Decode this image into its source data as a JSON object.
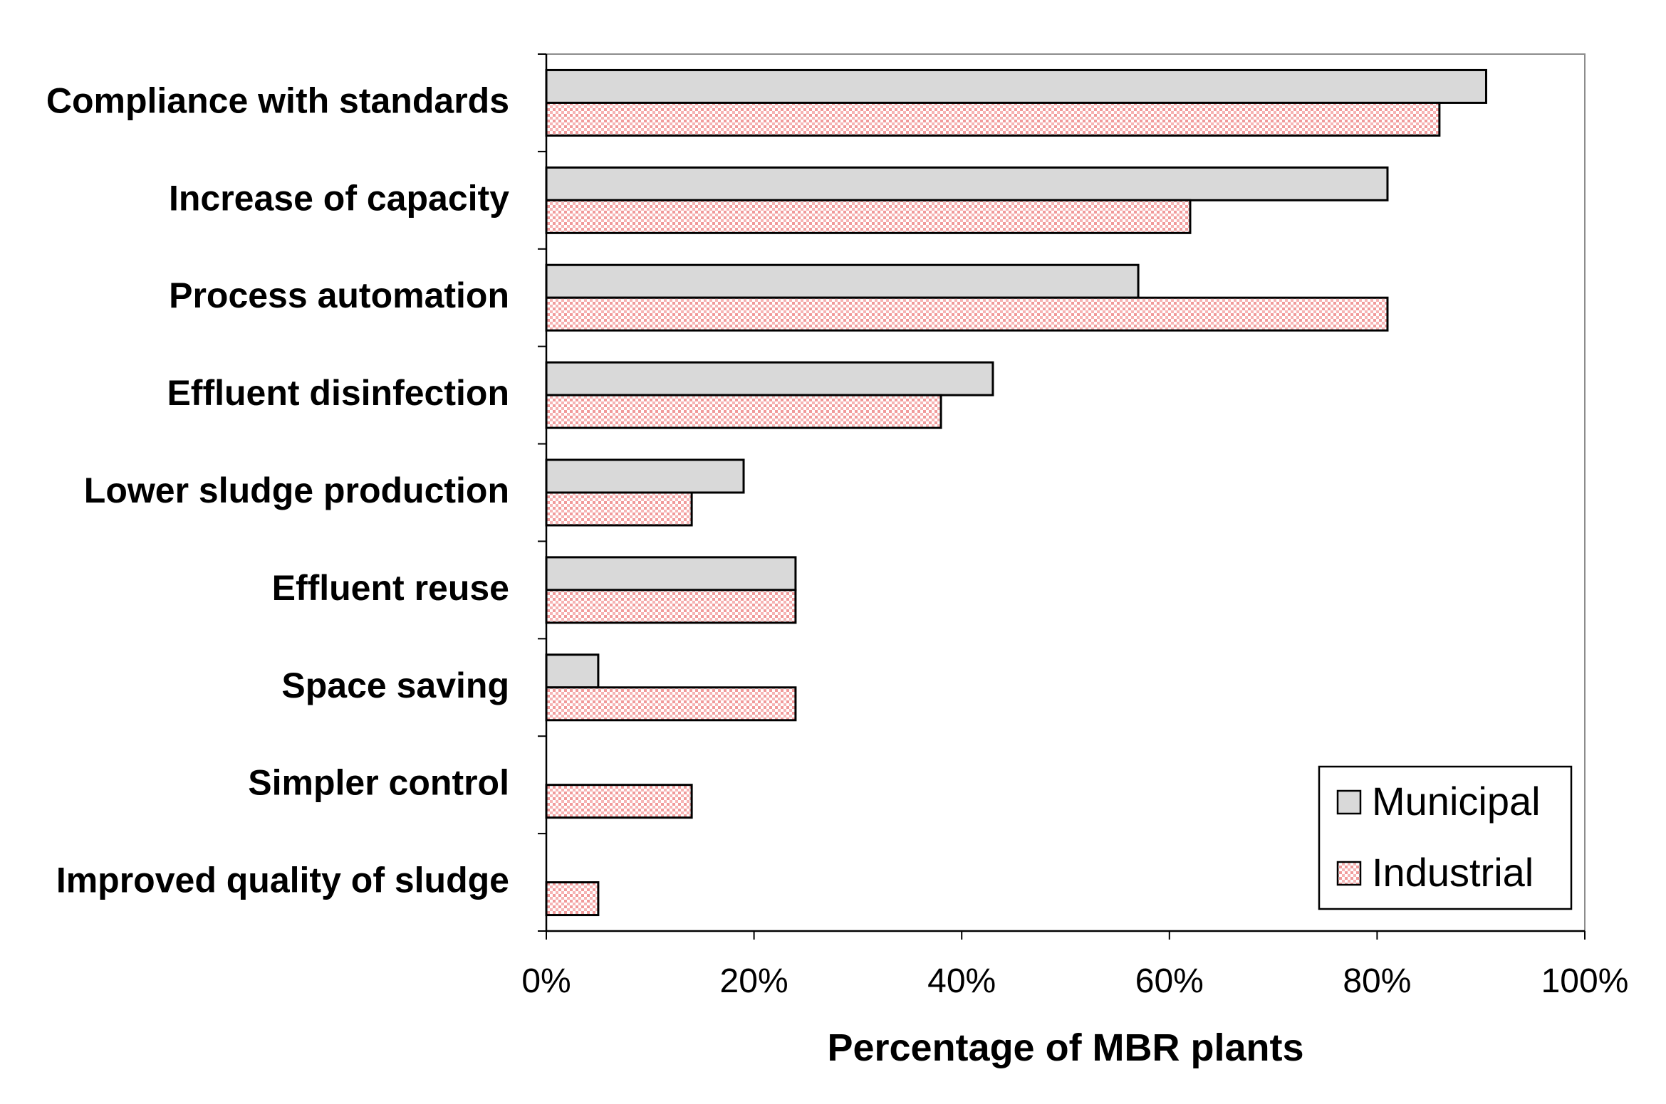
{
  "chart_data": {
    "type": "bar",
    "orientation": "horizontal",
    "categories": [
      "Compliance with standards",
      "Increase of capacity",
      "Process automation",
      "Effluent disinfection",
      "Lower sludge production",
      "Effluent reuse",
      "Space saving",
      "Simpler control",
      "Improved quality of sludge"
    ],
    "series": [
      {
        "name": "Municipal",
        "color": "#d9d9d9",
        "pattern": "solid",
        "values": [
          90.5,
          81,
          57,
          43,
          19,
          24,
          5,
          0,
          0
        ]
      },
      {
        "name": "Industrial",
        "color": "#ffc7c7",
        "pattern": "dotted",
        "values": [
          86,
          62,
          81,
          38,
          14,
          24,
          24,
          14,
          5
        ]
      }
    ],
    "title": "",
    "xlabel": "Percentage of MBR plants",
    "ylabel": "",
    "xlim": [
      0,
      100
    ],
    "xticks": [
      "0%",
      "20%",
      "40%",
      "60%",
      "80%",
      "100%"
    ],
    "legend_position": "bottom-right",
    "grid": false
  }
}
